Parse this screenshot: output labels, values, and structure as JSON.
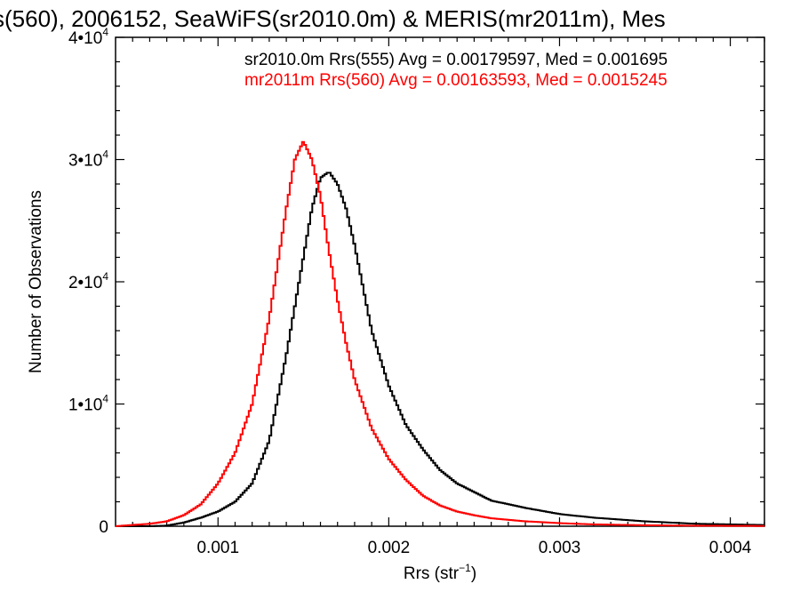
{
  "chart_data": {
    "type": "line",
    "title": "s(560), 2006152, SeaWiFS(sr2010.0m) & MERIS(mr2011m), Mes",
    "xlabel_main": "Rrs (str",
    "xlabel_sup": "−1",
    "xlabel_end": ")",
    "ylabel": "Number of Observations",
    "xlim": [
      0.0004,
      0.0042
    ],
    "ylim": [
      0,
      40000
    ],
    "x_ticks": [
      {
        "value": 0.001,
        "label": "0.001"
      },
      {
        "value": 0.002,
        "label": "0.002"
      },
      {
        "value": 0.003,
        "label": "0.003"
      },
      {
        "value": 0.004,
        "label": "0.004"
      }
    ],
    "y_ticks": [
      {
        "value": 0,
        "mant": "0",
        "exp": ""
      },
      {
        "value": 10000,
        "mant": "1•10",
        "exp": "4"
      },
      {
        "value": 20000,
        "mant": "2•10",
        "exp": "4"
      },
      {
        "value": 30000,
        "mant": "3•10",
        "exp": "4"
      },
      {
        "value": 40000,
        "mant": "4•10",
        "exp": "4"
      }
    ],
    "annotations": [
      {
        "text": "sr2010.0m Rrs(555) Avg = 0.00179597, Med = 0.001695",
        "color": "#000000"
      },
      {
        "text": "mr2011m Rrs(560) Avg = 0.00163593, Med = 0.0015245",
        "color": "#ff0000"
      }
    ],
    "series": [
      {
        "color": "#000000",
        "x": [
          0.0004,
          0.0006,
          0.0007,
          0.0008,
          0.0009,
          0.001,
          0.0011,
          0.0012,
          0.0013,
          0.0014,
          0.0015,
          0.00155,
          0.0016,
          0.00165,
          0.0017,
          0.00175,
          0.0018,
          0.00185,
          0.0019,
          0.002,
          0.0021,
          0.0022,
          0.0023,
          0.0024,
          0.0025,
          0.0026,
          0.0028,
          0.003,
          0.0032,
          0.0035,
          0.0038,
          0.0042
        ],
        "y": [
          0,
          0,
          50,
          300,
          700,
          1200,
          2000,
          3500,
          7000,
          14000,
          22000,
          26000,
          28500,
          29000,
          28000,
          26000,
          23000,
          19500,
          16000,
          11500,
          8300,
          6300,
          4600,
          3500,
          2800,
          2100,
          1500,
          1000,
          700,
          400,
          200,
          100
        ]
      },
      {
        "color": "#ff0000",
        "x": [
          0.0004,
          0.0006,
          0.0007,
          0.0008,
          0.0009,
          0.001,
          0.0011,
          0.0012,
          0.0013,
          0.0014,
          0.00145,
          0.0015,
          0.00155,
          0.0016,
          0.00165,
          0.0017,
          0.00175,
          0.0018,
          0.0019,
          0.002,
          0.0021,
          0.0022,
          0.0023,
          0.0024,
          0.0025,
          0.0026,
          0.0028,
          0.003,
          0.0032,
          0.0035,
          0.0038,
          0.0042
        ],
        "y": [
          0,
          200,
          400,
          900,
          1800,
          3500,
          6000,
          10000,
          17000,
          26000,
          30000,
          31500,
          30000,
          27000,
          22500,
          18500,
          15000,
          12000,
          8000,
          5500,
          3800,
          2500,
          1700,
          1200,
          900,
          650,
          400,
          250,
          150,
          80,
          40,
          20
        ]
      }
    ]
  }
}
